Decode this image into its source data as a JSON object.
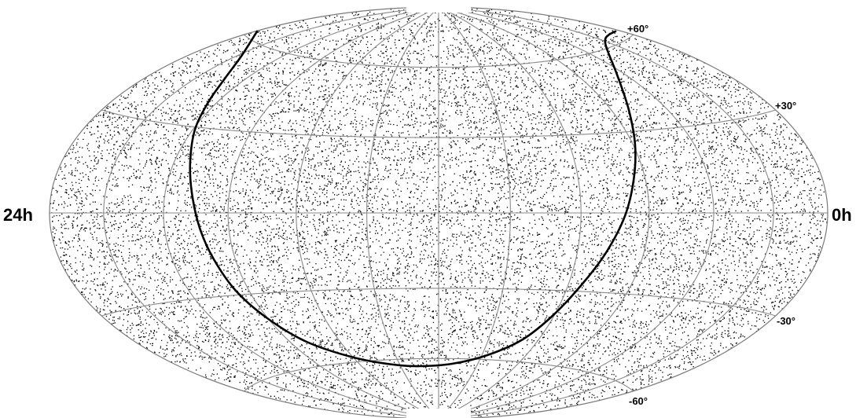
{
  "map": {
    "projection": "Hammer-Aitoff (all-sky)",
    "labels": {
      "ra_left": "24h",
      "ra_right": "0h",
      "dec_p60": "+60°",
      "dec_p30": "+30°",
      "dec_m30": "-30°",
      "dec_m60": "-60°"
    },
    "graticule": {
      "ra_meridian_step_hours": 2,
      "dec_parallel_step_deg": 30
    },
    "colors": {
      "background": "#ffffff",
      "map_fill": "#ffffff",
      "graticule": "#8a8a8a",
      "outline": "#7a7a7a",
      "stars": "#000000",
      "galactic_curve": "#000000"
    },
    "point_density": "approx. uniform star field",
    "galactic_plane": {
      "present": true,
      "style": "solid thick black line"
    }
  }
}
